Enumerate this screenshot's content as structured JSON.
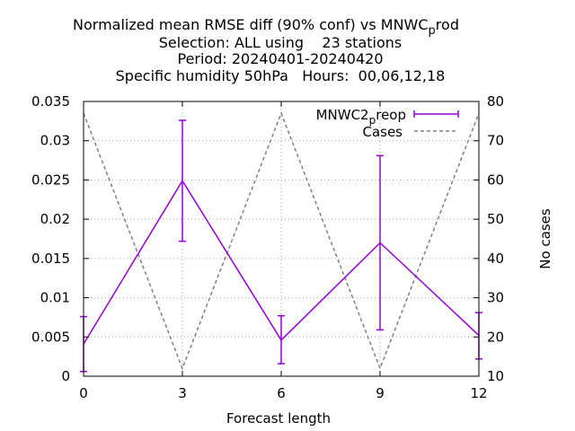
{
  "chart_data": {
    "type": "line",
    "title_lines": [
      "Normalized mean RMSE diff (90% conf) vs MNWC",
      "Selection: ALL using    23 stations",
      "Period: 20240401-20240420",
      "Specific humidity 50hPa   Hours:  00,06,12,18"
    ],
    "title_subscript": {
      "base": "p",
      "tail": "rod"
    },
    "xlabel": "Forecast length",
    "ylabel": "",
    "y2label": "No cases",
    "xlim": [
      0,
      12
    ],
    "ylim": [
      0,
      0.035
    ],
    "y2lim": [
      10,
      80
    ],
    "xticks": [
      "0",
      "3",
      "6",
      "9",
      "12"
    ],
    "yticks": [
      "0",
      "0.005",
      "0.01",
      "0.015",
      "0.02",
      "0.025",
      "0.03",
      "0.035"
    ],
    "y2ticks": [
      "10",
      "20",
      "30",
      "40",
      "50",
      "60",
      "70",
      "80"
    ],
    "grid": true,
    "legend_position": "top-right",
    "series": [
      {
        "name": "MNWC2",
        "name_subscript": "p",
        "name_tail": "reop",
        "color": "#9400d3",
        "axis": "left",
        "x": [
          0,
          3,
          6,
          9,
          12
        ],
        "y": [
          0.0041,
          0.0249,
          0.0046,
          0.017,
          0.0052
        ],
        "err_low": [
          0.0006,
          0.0172,
          0.0016,
          0.0059,
          0.0022
        ],
        "err_high": [
          0.0076,
          0.0326,
          0.0077,
          0.0281,
          0.0081
        ]
      },
      {
        "name": "Cases",
        "color": "#808080",
        "axis": "right",
        "dashed": true,
        "x": [
          0,
          3,
          6,
          9,
          12
        ],
        "y": [
          77,
          12,
          77,
          12,
          77
        ]
      }
    ]
  }
}
